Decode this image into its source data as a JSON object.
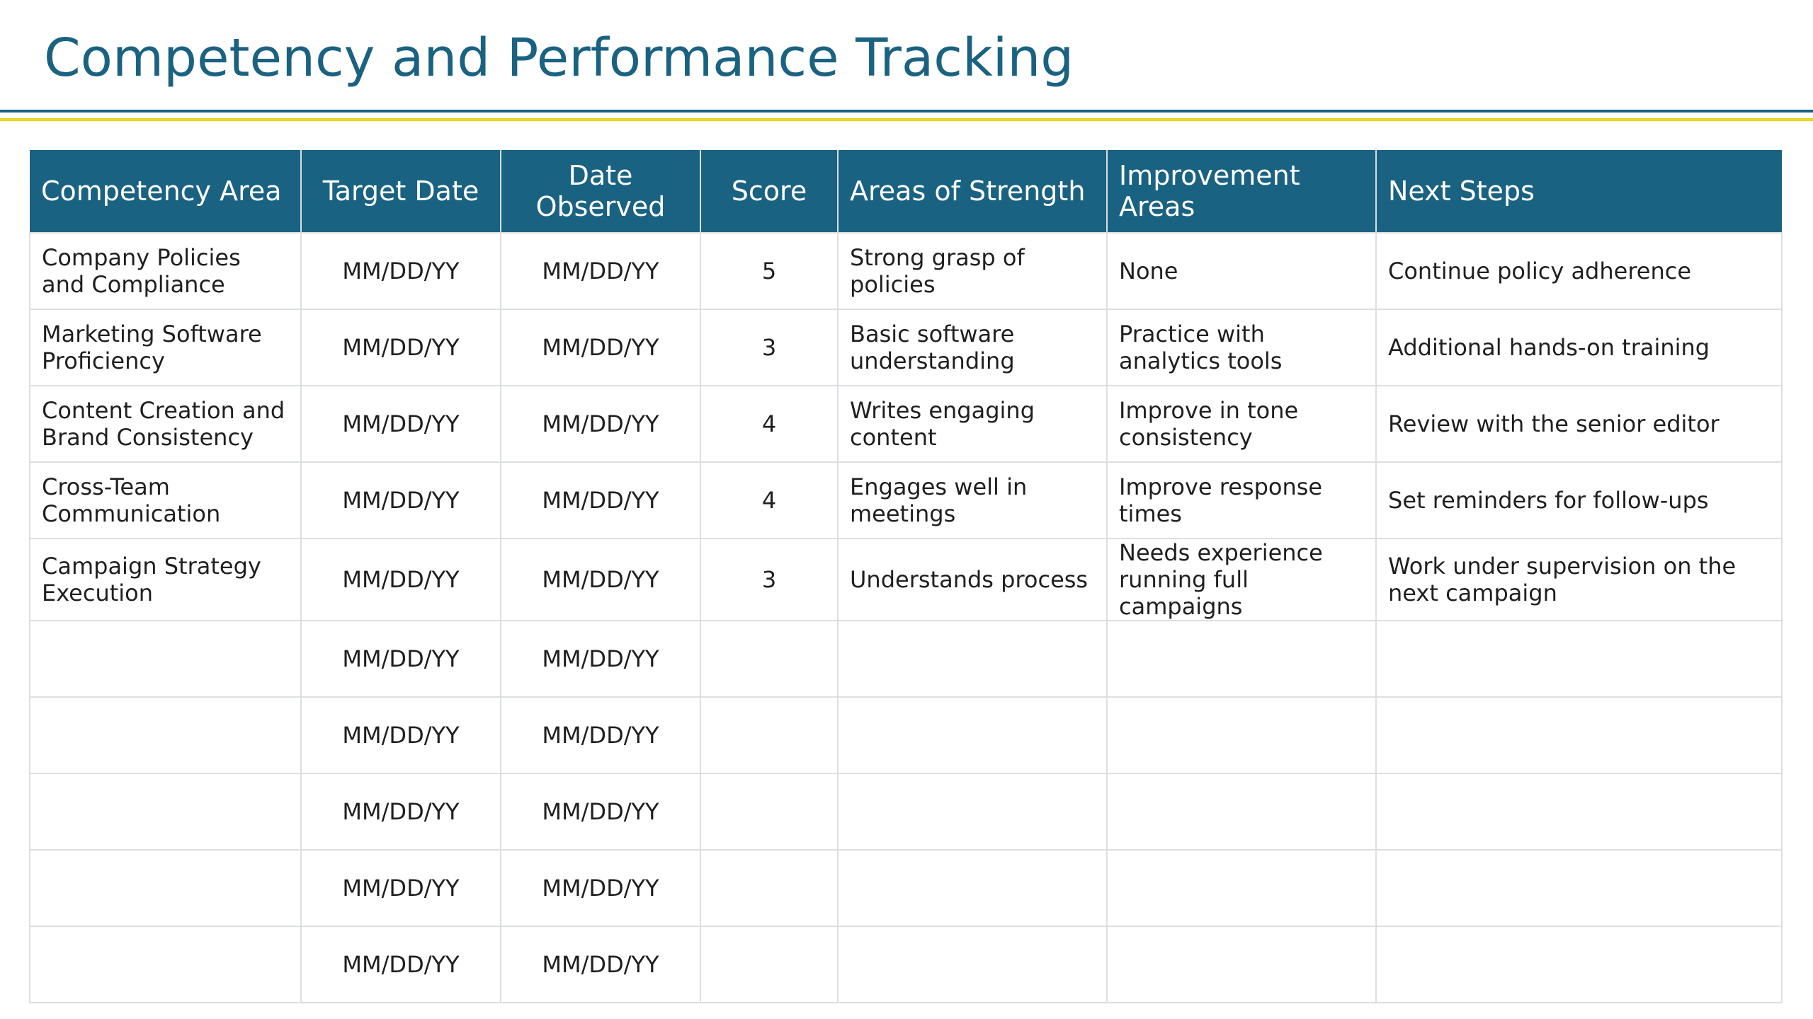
{
  "title": "Competency and Performance Tracking",
  "table": {
    "headers": [
      "Competency Area",
      "Target Date",
      "Date Observed",
      "Score",
      "Areas of Strength",
      "Improvement Areas",
      "Next Steps"
    ],
    "rows": [
      [
        "Company Policies and Compliance",
        "MM/DD/YY",
        "MM/DD/YY",
        "5",
        "Strong grasp of policies",
        "None",
        "Continue policy adherence"
      ],
      [
        "Marketing Software Proficiency",
        "MM/DD/YY",
        "MM/DD/YY",
        "3",
        "Basic software understanding",
        "Practice with analytics tools",
        "Additional hands-on training"
      ],
      [
        "Content Creation and Brand Consistency",
        "MM/DD/YY",
        "MM/DD/YY",
        "4",
        "Writes engaging content",
        "Improve in tone consistency",
        "Review with the senior editor"
      ],
      [
        "Cross-Team Communication",
        "MM/DD/YY",
        "MM/DD/YY",
        "4",
        "Engages well in meetings",
        "Improve response times",
        "Set reminders for follow-ups"
      ],
      [
        "Campaign Strategy Execution",
        "MM/DD/YY",
        "MM/DD/YY",
        "3",
        "Understands process",
        "Needs experience running full campaigns",
        "Work under supervision on the next campaign"
      ],
      [
        "",
        "MM/DD/YY",
        "MM/DD/YY",
        "",
        "",
        "",
        ""
      ],
      [
        "",
        "MM/DD/YY",
        "MM/DD/YY",
        "",
        "",
        "",
        ""
      ],
      [
        "",
        "MM/DD/YY",
        "MM/DD/YY",
        "",
        "",
        "",
        ""
      ],
      [
        "",
        "MM/DD/YY",
        "MM/DD/YY",
        "",
        "",
        "",
        ""
      ],
      [
        "",
        "MM/DD/YY",
        "MM/DD/YY",
        "",
        "",
        "",
        ""
      ]
    ]
  },
  "colors": {
    "header_bg": "#1a6281",
    "title_text": "#1a6281",
    "accent_rule_blue": "#1a6281",
    "accent_rule_yellow": "#e6d71e",
    "grid_line": "#dcdfe1"
  }
}
